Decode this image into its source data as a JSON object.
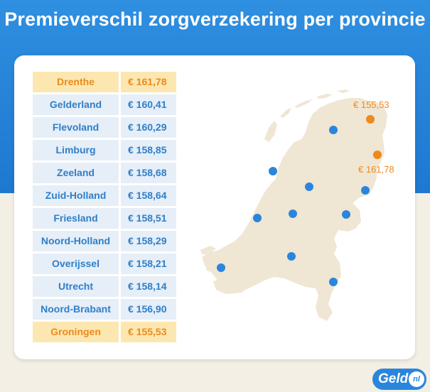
{
  "title": "Premieverschil zorgverzekering per provincie",
  "colors": {
    "header_blue": "#1e78d0",
    "highlight_orange": "#ec8a1c",
    "dot_blue": "#2a86dc",
    "land": "#efe6d4"
  },
  "table": {
    "rows": [
      {
        "province": "Drenthe",
        "premium": "€ 161,78",
        "highlight": true
      },
      {
        "province": "Gelderland",
        "premium": "€ 160,41",
        "highlight": false
      },
      {
        "province": "Flevoland",
        "premium": "€ 160,29",
        "highlight": false
      },
      {
        "province": "Limburg",
        "premium": "€ 158,85",
        "highlight": false
      },
      {
        "province": "Zeeland",
        "premium": "€ 158,68",
        "highlight": false
      },
      {
        "province": "Zuid-Holland",
        "premium": "€ 158,64",
        "highlight": false
      },
      {
        "province": "Friesland",
        "premium": "€ 158,51",
        "highlight": false
      },
      {
        "province": "Noord-Holland",
        "premium": "€ 158,29",
        "highlight": false
      },
      {
        "province": "Overijssel",
        "premium": "€ 158,21",
        "highlight": false
      },
      {
        "province": "Utrecht",
        "premium": "€ 158,14",
        "highlight": false
      },
      {
        "province": "Noord-Brabant",
        "premium": "€ 156,90",
        "highlight": false
      },
      {
        "province": "Groningen",
        "premium": "€ 155,53",
        "highlight": true
      }
    ]
  },
  "map": {
    "label_groningen": "€ 155,53",
    "label_drenthe": "€ 161,78"
  },
  "logo": {
    "text": "Geld",
    "badge": "nl"
  }
}
